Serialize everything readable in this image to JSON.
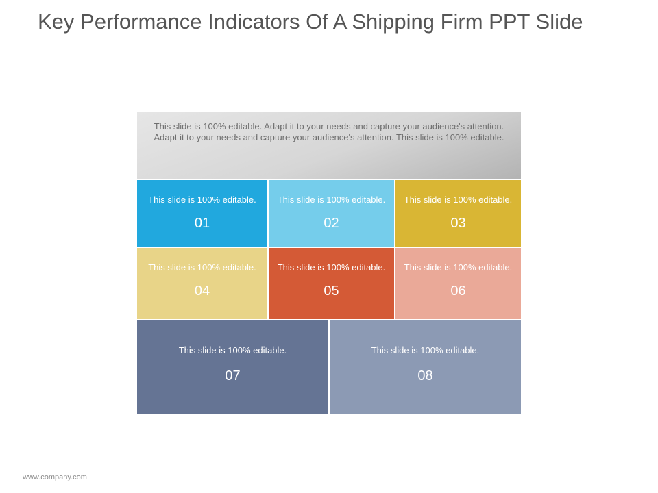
{
  "title": "Key Performance Indicators Of A Shipping Firm PPT Slide",
  "header_text": "This slide is 100% editable. Adapt it to your needs and capture your audience's attention. Adapt it to your needs and capture your audience's attention. This slide is 100% editable.",
  "tiles": [
    {
      "text": "This slide is 100% editable.",
      "number": "01",
      "color": "#21A8DE"
    },
    {
      "text": "This slide is 100% editable.",
      "number": "02",
      "color": "#75CDEB"
    },
    {
      "text": "This slide is 100% editable.",
      "number": "03",
      "color": "#D9B634"
    },
    {
      "text": "This slide is 100% editable.",
      "number": "04",
      "color": "#E8D488"
    },
    {
      "text": "This slide is 100% editable.",
      "number": "05",
      "color": "#D45A36"
    },
    {
      "text": "This slide is 100% editable.",
      "number": "06",
      "color": "#EAA998"
    },
    {
      "text": "This slide is 100% editable.",
      "number": "07",
      "color": "#657494"
    },
    {
      "text": "This slide is 100% editable.",
      "number": "08",
      "color": "#8C9AB4"
    }
  ],
  "footer": "www.company.com"
}
